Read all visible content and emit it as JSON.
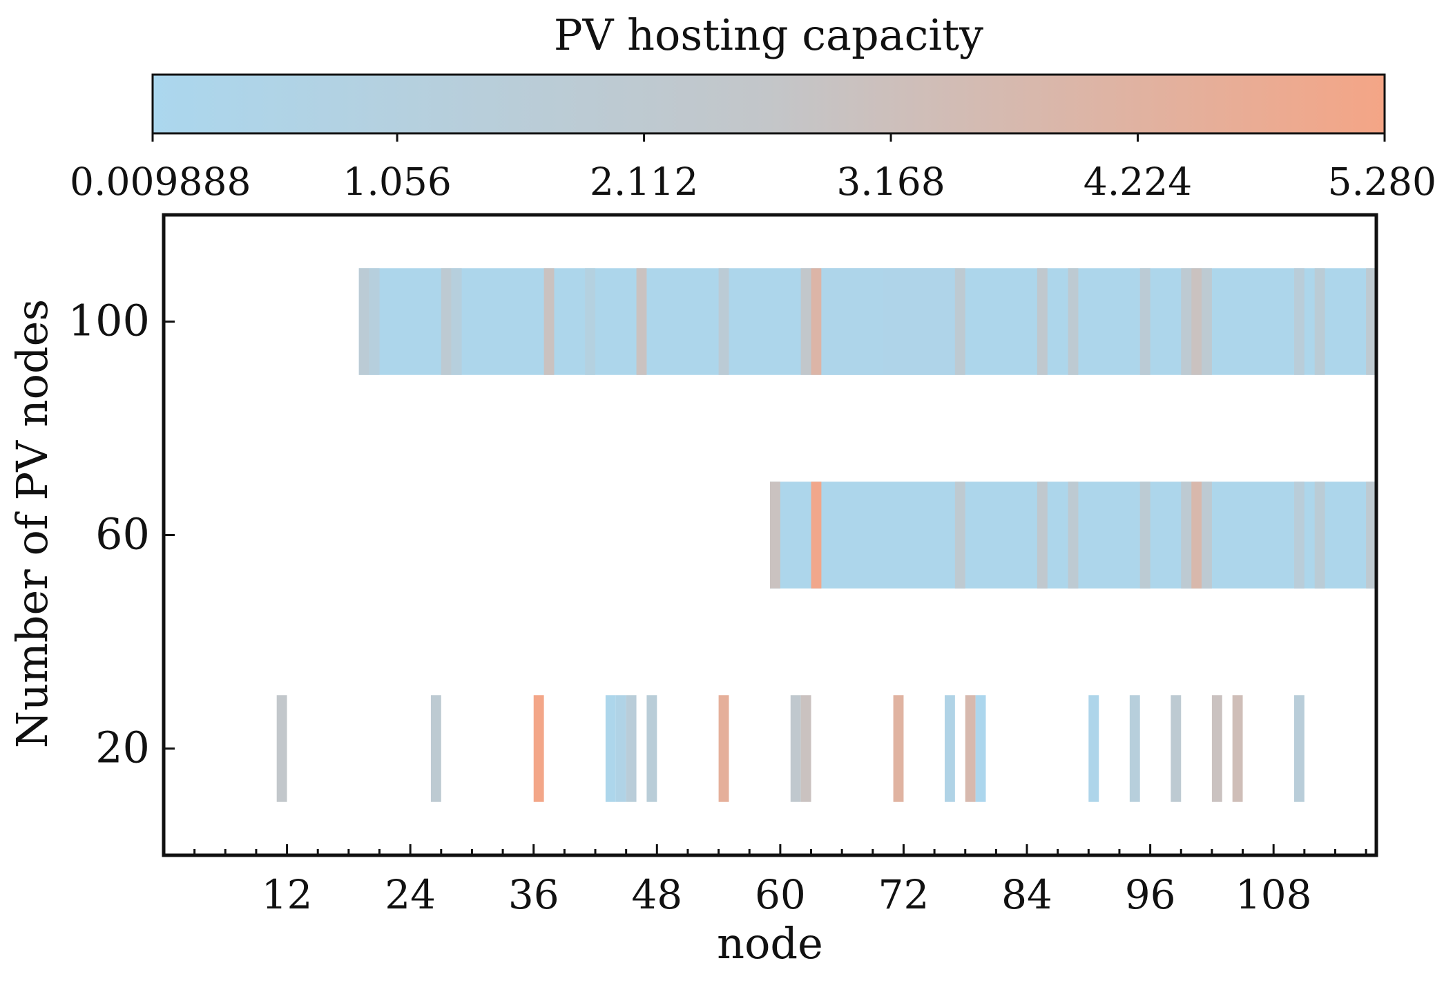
{
  "chart_data": {
    "type": "heatmap",
    "colorbar": {
      "title": "PV hosting capacity",
      "min": 0.009888,
      "max": 5.28,
      "ticks": [
        "0.009888",
        "1.056",
        "2.112",
        "3.168",
        "4.224",
        "5.280"
      ],
      "tick_values": [
        0.009888,
        1.056,
        2.112,
        3.168,
        4.224,
        5.28
      ],
      "colors": [
        "#abd7ee",
        "#c3c6c9",
        "#f4a586"
      ]
    },
    "xlabel": "node",
    "ylabel": "Number of PV nodes",
    "xlim": [
      0,
      118
    ],
    "ylim": [
      0,
      120
    ],
    "xticks": [
      12,
      24,
      36,
      48,
      60,
      72,
      84,
      96,
      108
    ],
    "xtick_labels": [
      "12",
      "24",
      "36",
      "48",
      "60",
      "72",
      "84",
      "96",
      "108"
    ],
    "yticks": [
      20,
      60,
      100
    ],
    "ytick_labels": [
      "20",
      "60",
      "100"
    ],
    "band_half_height": 10,
    "series": [
      {
        "name": "20",
        "y": 20,
        "segments": [
          {
            "start": 11,
            "end": 12,
            "value": 2.5
          },
          {
            "start": 26,
            "end": 27,
            "value": 2.0
          },
          {
            "start": 36,
            "end": 37,
            "value": 5.2
          },
          {
            "start": 43,
            "end": 44,
            "value": 0.2
          },
          {
            "start": 44,
            "end": 45,
            "value": 0.6
          },
          {
            "start": 45,
            "end": 46,
            "value": 1.5
          },
          {
            "start": 47,
            "end": 48,
            "value": 1.6
          },
          {
            "start": 54,
            "end": 55,
            "value": 4.5
          },
          {
            "start": 61,
            "end": 62,
            "value": 2.3
          },
          {
            "start": 62,
            "end": 63,
            "value": 3.0
          },
          {
            "start": 71,
            "end": 72,
            "value": 4.2
          },
          {
            "start": 76,
            "end": 77,
            "value": 0.6
          },
          {
            "start": 78,
            "end": 79,
            "value": 3.7
          },
          {
            "start": 79,
            "end": 80,
            "value": 0.1
          },
          {
            "start": 90,
            "end": 91,
            "value": 0.3
          },
          {
            "start": 94,
            "end": 95,
            "value": 1.3
          },
          {
            "start": 98,
            "end": 99,
            "value": 2.0
          },
          {
            "start": 102,
            "end": 103,
            "value": 3.0
          },
          {
            "start": 104,
            "end": 105,
            "value": 3.3
          },
          {
            "start": 110,
            "end": 111,
            "value": 1.5
          }
        ]
      },
      {
        "name": "60",
        "y": 60,
        "range": [
          59,
          118
        ],
        "base_value": 0.2,
        "segments": [
          {
            "start": 59,
            "end": 60,
            "value": 3.0
          },
          {
            "start": 63,
            "end": 64,
            "value": 5.1
          },
          {
            "start": 77,
            "end": 78,
            "value": 2.1
          },
          {
            "start": 85,
            "end": 86,
            "value": 2.3
          },
          {
            "start": 88,
            "end": 89,
            "value": 2.0
          },
          {
            "start": 95,
            "end": 96,
            "value": 1.9
          },
          {
            "start": 99,
            "end": 100,
            "value": 2.0
          },
          {
            "start": 100,
            "end": 101,
            "value": 3.8
          },
          {
            "start": 101,
            "end": 102,
            "value": 2.0
          },
          {
            "start": 110,
            "end": 111,
            "value": 1.5
          },
          {
            "start": 112,
            "end": 113,
            "value": 1.7
          },
          {
            "start": 117,
            "end": 118,
            "value": 2.1
          }
        ]
      },
      {
        "name": "100",
        "y": 100,
        "range": [
          19,
          118
        ],
        "base_value": 0.2,
        "segments": [
          {
            "start": 19,
            "end": 20,
            "value": 1.8
          },
          {
            "start": 20,
            "end": 21,
            "value": 1.2
          },
          {
            "start": 27,
            "end": 28,
            "value": 2.0
          },
          {
            "start": 28,
            "end": 29,
            "value": 1.2
          },
          {
            "start": 37,
            "end": 38,
            "value": 3.0
          },
          {
            "start": 41,
            "end": 42,
            "value": 1.0
          },
          {
            "start": 46,
            "end": 47,
            "value": 3.0
          },
          {
            "start": 54,
            "end": 55,
            "value": 1.8
          },
          {
            "start": 62,
            "end": 63,
            "value": 2.5
          },
          {
            "start": 63,
            "end": 64,
            "value": 4.0
          },
          {
            "start": 64,
            "end": 70,
            "value": 0.3
          },
          {
            "start": 70,
            "end": 77,
            "value": 0.4
          },
          {
            "start": 77,
            "end": 78,
            "value": 2.0
          },
          {
            "start": 85,
            "end": 86,
            "value": 2.3
          },
          {
            "start": 88,
            "end": 89,
            "value": 2.0
          },
          {
            "start": 95,
            "end": 96,
            "value": 1.8
          },
          {
            "start": 99,
            "end": 100,
            "value": 2.0
          },
          {
            "start": 100,
            "end": 101,
            "value": 3.0
          },
          {
            "start": 101,
            "end": 102,
            "value": 2.0
          },
          {
            "start": 110,
            "end": 111,
            "value": 1.5
          },
          {
            "start": 112,
            "end": 113,
            "value": 1.7
          },
          {
            "start": 117,
            "end": 118,
            "value": 2.1
          }
        ]
      }
    ]
  }
}
